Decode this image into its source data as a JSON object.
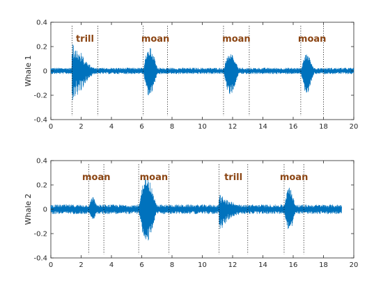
{
  "chart_data": [
    {
      "type": "line",
      "ylabel": "Whale 1",
      "xlabel": "",
      "title": "",
      "xlim": [
        0,
        20
      ],
      "ylim": [
        -0.4,
        0.4
      ],
      "xticks": [
        "0",
        "2",
        "4",
        "6",
        "8",
        "10",
        "12",
        "14",
        "16",
        "18",
        "20"
      ],
      "yticks": [
        "-0.4",
        "-0.2",
        "0",
        "0.2",
        "0.4"
      ],
      "signal_duration": 20,
      "baseline_amplitude": 0.02,
      "line_color": "#0072bd",
      "segments": [
        {
          "label": "trill",
          "start": 1.4,
          "end": 3.1,
          "peak_pos": 0.25,
          "neg_peak": -0.28,
          "kind": "trill"
        },
        {
          "label": "moan",
          "start": 6.1,
          "end": 7.7,
          "peak_pos": 0.28,
          "neg_peak": -0.3,
          "kind": "moan"
        },
        {
          "label": "moan",
          "start": 11.4,
          "end": 13.1,
          "peak_pos": 0.22,
          "neg_peak": -0.28,
          "kind": "moan"
        },
        {
          "label": "moan",
          "start": 16.5,
          "end": 18.0,
          "peak_pos": 0.2,
          "neg_peak": -0.26,
          "kind": "moan"
        }
      ]
    },
    {
      "type": "line",
      "ylabel": "Whale 2",
      "xlabel": "",
      "title": "",
      "xlim": [
        0,
        20
      ],
      "ylim": [
        -0.4,
        0.4
      ],
      "xticks": [
        "0",
        "2",
        "4",
        "6",
        "8",
        "10",
        "12",
        "14",
        "16",
        "18",
        "20"
      ],
      "yticks": [
        "-0.4",
        "-0.2",
        "0",
        "0.2",
        "0.4"
      ],
      "signal_duration": 19.2,
      "baseline_amplitude": 0.03,
      "line_color": "#0072bd",
      "segments": [
        {
          "label": "moan",
          "start": 2.5,
          "end": 3.5,
          "peak_pos": 0.14,
          "neg_peak": -0.12,
          "kind": "moan"
        },
        {
          "label": "moan",
          "start": 5.8,
          "end": 7.8,
          "peak_pos": 0.38,
          "neg_peak": -0.38,
          "kind": "moan"
        },
        {
          "label": "trill",
          "start": 11.1,
          "end": 13.0,
          "peak_pos": 0.14,
          "neg_peak": -0.18,
          "kind": "trill"
        },
        {
          "label": "moan",
          "start": 15.4,
          "end": 16.7,
          "peak_pos": 0.25,
          "neg_peak": -0.25,
          "kind": "moan"
        }
      ]
    }
  ]
}
